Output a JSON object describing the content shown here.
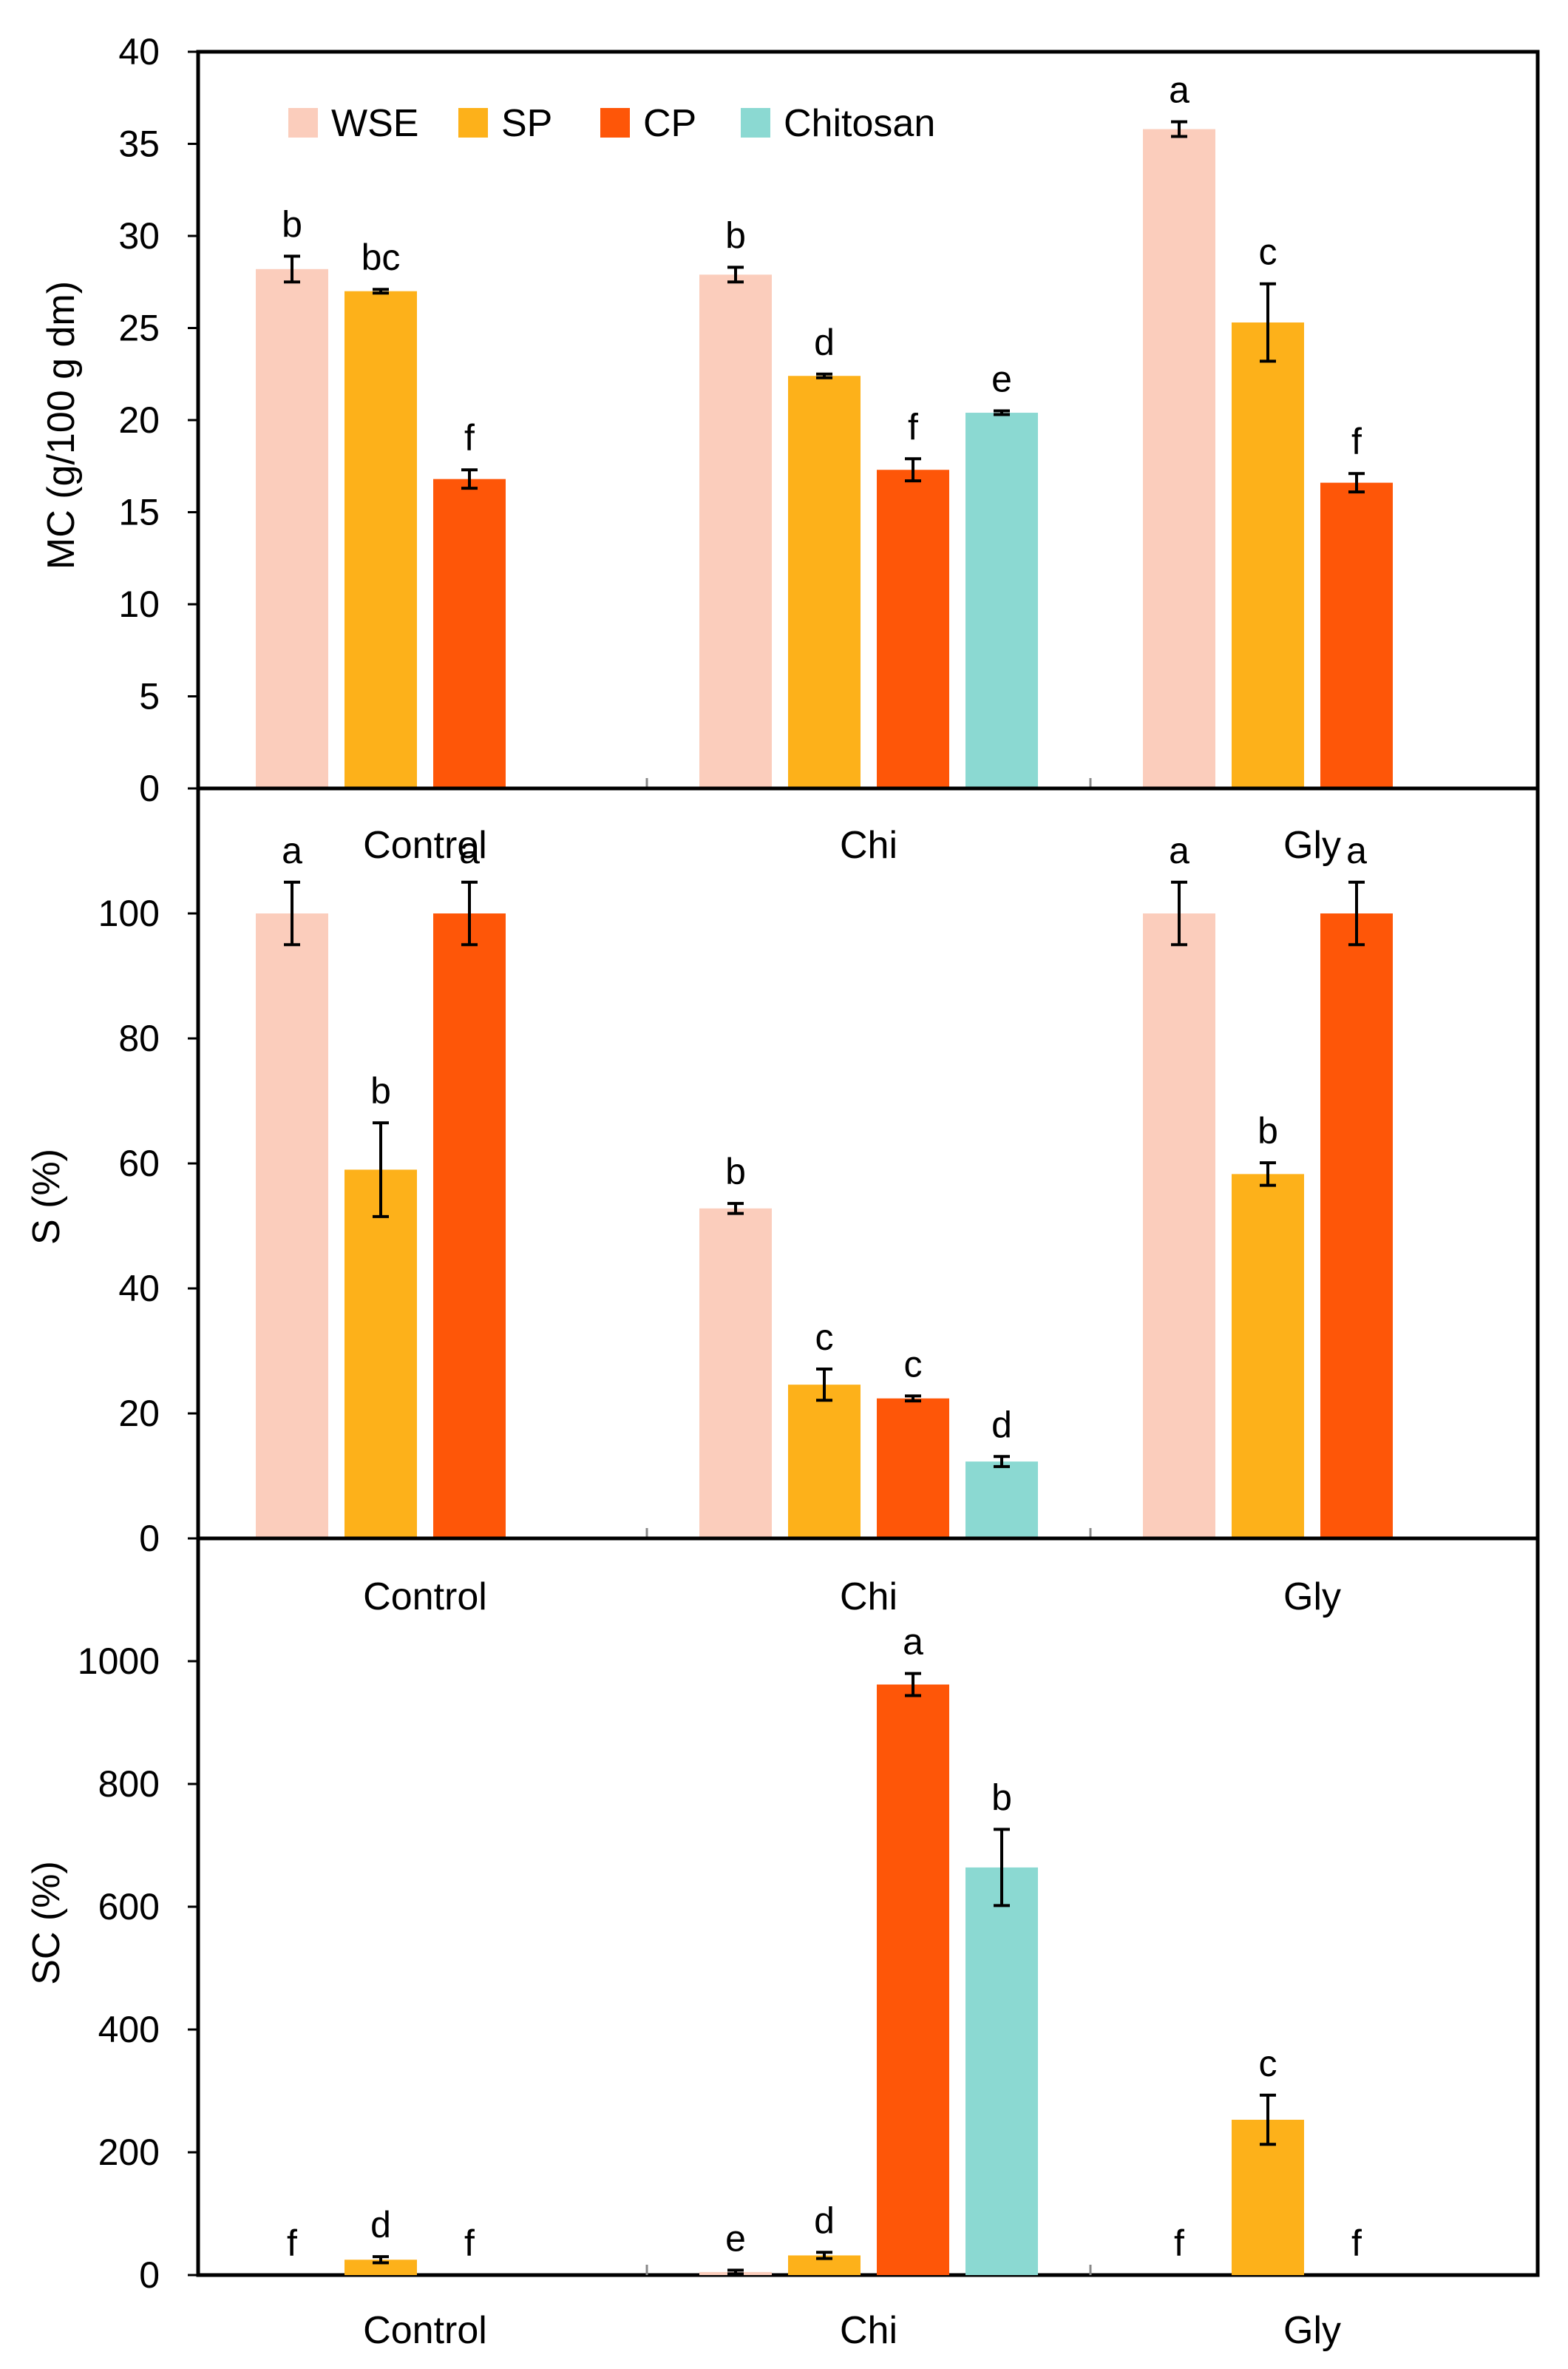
{
  "colors": {
    "WSE": "#FBCDBC",
    "SP": "#FDB11A",
    "CP": "#FE5608",
    "Chitosan": "#8BD9D2",
    "axis": "#000000",
    "error": "#000000"
  },
  "legend": [
    {
      "key": "WSE",
      "label": "WSE"
    },
    {
      "key": "SP",
      "label": "SP"
    },
    {
      "key": "CP",
      "label": "CP"
    },
    {
      "key": "Chitosan",
      "label": "Chitosan"
    }
  ],
  "chart_data": [
    {
      "type": "bar",
      "ylabel": "MC (g/100 g dm)",
      "ylim": [
        0,
        40
      ],
      "yticks": [
        0,
        5,
        10,
        15,
        20,
        25,
        30,
        35,
        40
      ],
      "categories": [
        "Control",
        "Chi",
        "Gly"
      ],
      "series": [
        {
          "name": "WSE",
          "values": [
            28.2,
            27.9,
            35.8
          ],
          "errors": [
            0.7,
            0.4,
            0.4
          ],
          "labels": [
            "b",
            "b",
            "a"
          ]
        },
        {
          "name": "SP",
          "values": [
            27.0,
            22.4,
            25.3
          ],
          "errors": [
            0.1,
            0.1,
            2.1
          ],
          "labels": [
            "bc",
            "d",
            "c"
          ]
        },
        {
          "name": "CP",
          "values": [
            16.8,
            17.3,
            16.6
          ],
          "errors": [
            0.5,
            0.6,
            0.5
          ],
          "labels": [
            "f",
            "f",
            "f"
          ]
        },
        {
          "name": "Chitosan",
          "values": [
            null,
            20.4,
            null
          ],
          "errors": [
            null,
            0.1,
            null
          ],
          "labels": [
            null,
            "e",
            null
          ]
        }
      ]
    },
    {
      "type": "bar",
      "ylabel": "S (%)",
      "ylim": [
        0,
        120
      ],
      "yticks": [
        0,
        20,
        40,
        60,
        80,
        100
      ],
      "categories": [
        "Control",
        "Chi",
        "Gly"
      ],
      "series": [
        {
          "name": "WSE",
          "values": [
            100,
            52.8,
            100
          ],
          "errors": [
            5,
            0.8,
            5
          ],
          "labels": [
            "a",
            "b",
            "a"
          ]
        },
        {
          "name": "SP",
          "values": [
            59,
            24.6,
            58.3
          ],
          "errors": [
            7.5,
            2.5,
            1.8
          ],
          "labels": [
            "b",
            "c",
            "b"
          ]
        },
        {
          "name": "CP",
          "values": [
            100,
            22.4,
            100
          ],
          "errors": [
            5,
            0.4,
            5
          ],
          "labels": [
            "a",
            "c",
            "a"
          ]
        },
        {
          "name": "Chitosan",
          "values": [
            null,
            12.3,
            null
          ],
          "errors": [
            null,
            0.8,
            null
          ],
          "labels": [
            null,
            "d",
            null
          ]
        }
      ]
    },
    {
      "type": "bar",
      "ylabel": "SC (%)",
      "ylim": [
        0,
        1200
      ],
      "yticks": [
        0,
        200,
        400,
        600,
        800,
        1000
      ],
      "categories": [
        "Control",
        "Chi",
        "Gly"
      ],
      "series": [
        {
          "name": "WSE",
          "values": [
            0,
            5,
            0
          ],
          "errors": [
            0,
            3,
            0
          ],
          "labels": [
            "f",
            "e",
            "f"
          ]
        },
        {
          "name": "SP",
          "values": [
            25,
            32,
            253
          ],
          "errors": [
            5,
            5,
            40
          ],
          "labels": [
            "d",
            "d",
            "c"
          ]
        },
        {
          "name": "CP",
          "values": [
            0,
            962,
            0
          ],
          "errors": [
            0,
            18,
            0
          ],
          "labels": [
            "f",
            "a",
            "f"
          ]
        },
        {
          "name": "Chitosan",
          "values": [
            null,
            664,
            null
          ],
          "errors": [
            null,
            62,
            null
          ],
          "labels": [
            null,
            "b",
            null
          ]
        }
      ]
    }
  ]
}
